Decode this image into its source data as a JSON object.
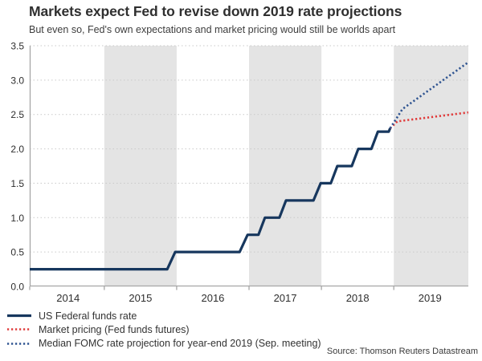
{
  "chart_data": {
    "type": "line",
    "title": "Markets expect Fed to revise down 2019 rate projections",
    "subtitle": "But even so, Fed's own expectations and market pricing would still be worlds apart",
    "source": "Source: Thomson Reuters Datastream",
    "x_domain": [
      2013.47,
      2019.53
    ],
    "ylim": [
      0,
      3.5
    ],
    "y_ticks": [
      "0.0",
      "0.5",
      "1.0",
      "1.5",
      "2.0",
      "2.5",
      "3.0",
      "3.5"
    ],
    "x_tick_years": [
      "2014",
      "2015",
      "2016",
      "2017",
      "2018",
      "2019"
    ],
    "year_boundary_ticks": [
      2013.47,
      2014.5,
      2015.5,
      2016.5,
      2017.5,
      2018.5
    ],
    "shaded_year_bands": [
      [
        2014.5,
        2015.5
      ],
      [
        2016.5,
        2017.5
      ],
      [
        2018.5,
        2019.53
      ]
    ],
    "grid": true,
    "legend_position": "bottom-left",
    "colors": {
      "band": "#e4e4e4",
      "grid": "#c9c9c9",
      "axis": "#a6a6a6",
      "navy": "#17375e",
      "red": "#e03c3c",
      "blue": "#2f5491"
    },
    "series": [
      {
        "name": "US Federal funds rate",
        "color_key": "navy",
        "style": "solid",
        "points": [
          [
            2013.47,
            0.25
          ],
          [
            2015.37,
            0.25
          ],
          [
            2015.48,
            0.5
          ],
          [
            2016.37,
            0.5
          ],
          [
            2016.48,
            0.75
          ],
          [
            2016.63,
            0.75
          ],
          [
            2016.72,
            1.0
          ],
          [
            2016.92,
            1.0
          ],
          [
            2017.01,
            1.25
          ],
          [
            2017.39,
            1.25
          ],
          [
            2017.49,
            1.5
          ],
          [
            2017.63,
            1.5
          ],
          [
            2017.72,
            1.75
          ],
          [
            2017.92,
            1.75
          ],
          [
            2018.01,
            2.0
          ],
          [
            2018.19,
            2.0
          ],
          [
            2018.28,
            2.25
          ],
          [
            2018.43,
            2.25
          ],
          [
            2018.45,
            2.3
          ]
        ]
      },
      {
        "name": "Market pricing (Fed funds futures)",
        "color_key": "red",
        "style": "dotted",
        "points": [
          [
            2018.45,
            2.3
          ],
          [
            2018.55,
            2.4
          ],
          [
            2019.53,
            2.53
          ]
        ]
      },
      {
        "name": "Median FOMC rate projection for year-end 2019 (Sep. meeting)",
        "color_key": "blue",
        "style": "dotted",
        "points": [
          [
            2018.45,
            2.3
          ],
          [
            2018.62,
            2.58
          ],
          [
            2019.53,
            3.26
          ]
        ]
      }
    ]
  }
}
